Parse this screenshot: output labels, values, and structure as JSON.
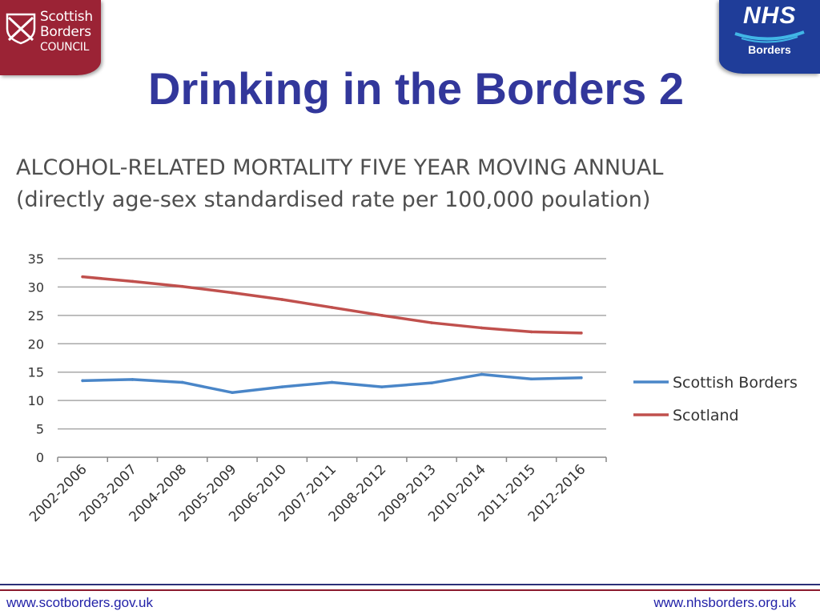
{
  "header": {
    "title": "Drinking in the Borders 2",
    "logo_left": {
      "line1": "Scottish",
      "line2": "Borders",
      "line3": "COUNCIL"
    },
    "logo_right": {
      "main": "NHS",
      "sub": "Borders"
    }
  },
  "footer": {
    "left_link": "www.scotborders.gov.uk",
    "right_link": "www.nhsborders.org.uk"
  },
  "colors": {
    "title": "#32379b",
    "scottish_borders": "#4a86c8",
    "scotland": "#c0504d",
    "footer_blue": "#2b2f78",
    "footer_red": "#8b1a2e"
  },
  "chart_data": {
    "type": "line",
    "title": "ALCOHOL-RELATED MORTALITY FIVE YEAR MOVING ANNUAL",
    "subtitle": "(directly age-sex standardised rate per 100,000 poulation)",
    "categories": [
      "2002-2006",
      "2003-2007",
      "2004-2008",
      "2005-2009",
      "2006-2010",
      "2007-2011",
      "2008-2012",
      "2009-2013",
      "2010-2014",
      "2011-2015",
      "2012-2016"
    ],
    "series": [
      {
        "name": "Scottish Borders",
        "color": "#4a86c8",
        "values": [
          13.5,
          13.7,
          13.2,
          11.4,
          12.4,
          13.2,
          12.4,
          13.1,
          14.6,
          13.8,
          14.0
        ]
      },
      {
        "name": "Scotland",
        "color": "#c0504d",
        "values": [
          31.8,
          31.0,
          30.1,
          29.0,
          27.8,
          26.4,
          25.0,
          23.7,
          22.8,
          22.1,
          21.9
        ]
      }
    ],
    "ylim": [
      0,
      35
    ],
    "yticks": [
      0,
      5,
      10,
      15,
      20,
      25,
      30,
      35
    ],
    "grid": true,
    "legend": "right"
  }
}
